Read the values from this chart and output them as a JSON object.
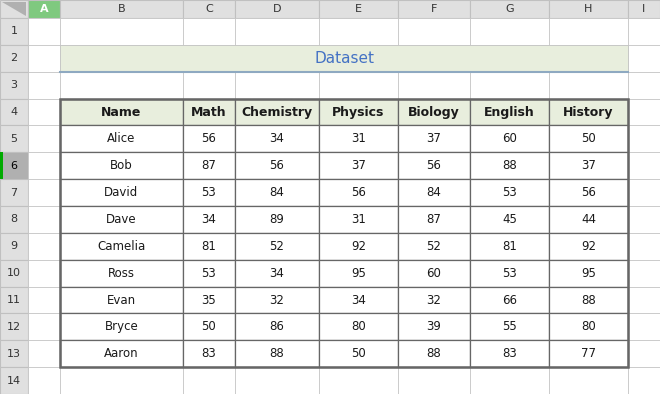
{
  "title": "Dataset",
  "title_bg_color": "#e8eedd",
  "title_text_color": "#4472c4",
  "title_fontsize": 11,
  "header_bg_color": "#e8eedd",
  "header_text_color": "#1a1a1a",
  "header_fontsize": 9,
  "cell_text_color": "#1a1a1a",
  "cell_fontsize": 8.5,
  "columns": [
    "Name",
    "Math",
    "Chemistry",
    "Physics",
    "Biology",
    "English",
    "History"
  ],
  "rows": [
    [
      "Alice",
      56,
      34,
      31,
      37,
      60,
      50
    ],
    [
      "Bob",
      87,
      56,
      37,
      56,
      88,
      37
    ],
    [
      "David",
      53,
      84,
      56,
      84,
      53,
      56
    ],
    [
      "Dave",
      34,
      89,
      31,
      87,
      45,
      44
    ],
    [
      "Camelia",
      81,
      52,
      92,
      52,
      81,
      92
    ],
    [
      "Ross",
      53,
      34,
      95,
      60,
      53,
      95
    ],
    [
      "Evan",
      35,
      32,
      34,
      32,
      66,
      88
    ],
    [
      "Bryce",
      50,
      86,
      80,
      39,
      55,
      80
    ],
    [
      "Aaron",
      83,
      88,
      50,
      88,
      83,
      77
    ]
  ],
  "excel_col_labels": [
    "A",
    "B",
    "C",
    "D",
    "E",
    "F",
    "G",
    "H",
    "I"
  ],
  "excel_row_labels": [
    "1",
    "2",
    "3",
    "4",
    "5",
    "6",
    "7",
    "8",
    "9",
    "10",
    "11",
    "12",
    "13",
    "14"
  ],
  "bg_color": "#ffffff",
  "excel_header_bg": "#e0e0e0",
  "excel_header_text": "#333333",
  "col_A_selected_bg": "#7fc97f",
  "row6_header_bg": "#b0b0b0",
  "grid_color_light": "#c0c0c0",
  "grid_color_dark": "#555555",
  "title_border_color": "#8ea9c1",
  "table_border_color": "#666666"
}
